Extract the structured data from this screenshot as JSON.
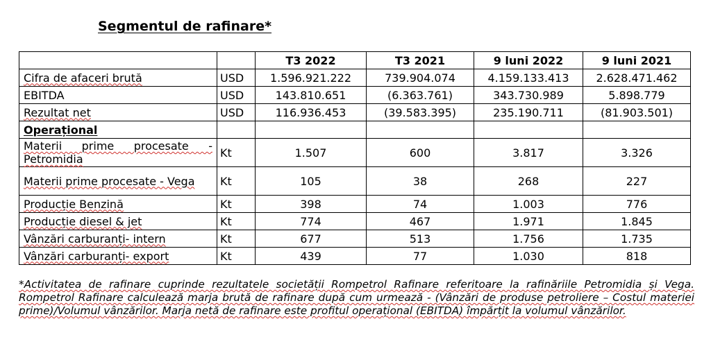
{
  "title": "Segmentul de rafinare*",
  "table": {
    "headers": [
      "",
      "",
      "T3 2022",
      "T3 2021",
      "9 luni 2022",
      "9 luni 2021"
    ],
    "rows": [
      {
        "label": "Cifra de afaceri brută",
        "unit": "USD",
        "values": [
          "1.596.921.222",
          "739.904.074",
          "4.159.133.413",
          "2.628.471.462"
        ]
      },
      {
        "label": "EBITDA",
        "unit": "USD",
        "values": [
          "143.810.651",
          "(6.363.761)",
          "343.730.989",
          "5.898.779"
        ]
      },
      {
        "label": "Rezultat net",
        "unit": "USD",
        "values": [
          "116.936.453",
          "(39.583.395)",
          "235.190.711",
          "(81.903.501)"
        ]
      },
      {
        "label": "Operațional",
        "unit": "",
        "values": [
          "",
          "",
          "",
          ""
        ]
      },
      {
        "label": "Materii prime procesate - Petromidia",
        "unit": "Kt",
        "values": [
          "1.507",
          "600",
          "3.817",
          "3.326"
        ]
      },
      {
        "label": "Materii prime procesate - Vega",
        "unit": "Kt",
        "values": [
          "105",
          "38",
          "268",
          "227"
        ]
      },
      {
        "label": "Producție Benzină",
        "unit": "Kt",
        "values": [
          "398",
          "74",
          "1.003",
          "776"
        ]
      },
      {
        "label": "Producție diesel & jet",
        "unit": "Kt",
        "values": [
          "774",
          "467",
          "1.971",
          "1.845"
        ]
      },
      {
        "label": "Vânzări carburanți- intern",
        "unit": "Kt",
        "values": [
          "677",
          "513",
          "1.756",
          "1.735"
        ]
      },
      {
        "label": "Vânzări carburanți- export",
        "unit": "Kt",
        "values": [
          "439",
          "77",
          "1.030",
          "818"
        ]
      }
    ]
  },
  "footnote": "*Activitatea de rafinare cuprinde rezultatele societății Rompetrol Rafinare referitoare la rafinăriile Petromidia și Vega. Rompetrol Rafinare calculează marja brută de rafinare după cum urmează - (Vânzări de produse petroliere – Costul materiei prime)/Volumul vânzărilor. Marja netă de rafinare este profitul operațional (EBITDA) împărțit la volumul vânzărilor."
}
